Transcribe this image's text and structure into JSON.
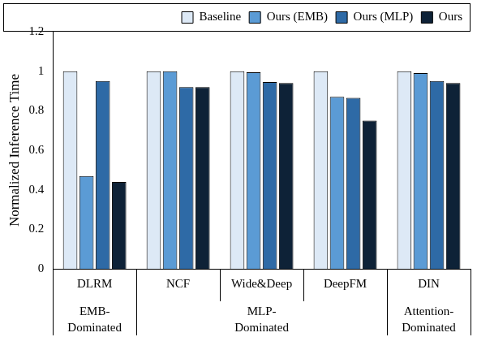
{
  "chart_data": {
    "type": "bar",
    "y_label": "Normalized Inference Time",
    "categories": [
      "DLRM",
      "NCF",
      "Wide&Deep",
      "DeepFM",
      "DIN"
    ],
    "category_groups": [
      {
        "label": [
          "EMB-",
          "Dominated"
        ],
        "categories": [
          "DLRM"
        ]
      },
      {
        "label": [
          "MLP-",
          "Dominated"
        ],
        "categories": [
          "NCF",
          "Wide&Deep",
          "DeepFM"
        ]
      },
      {
        "label": [
          "Attention-",
          "Dominated"
        ],
        "categories": [
          "DIN"
        ]
      }
    ],
    "series": [
      {
        "name": "Baseline",
        "color": "#dde9f6",
        "values": [
          1,
          1,
          1,
          1,
          1
        ]
      },
      {
        "name": "Ours (EMB)",
        "color": "#5b9bd5",
        "values": [
          0.47,
          1,
          0.995,
          0.87,
          0.99
        ]
      },
      {
        "name": "Ours (MLP)",
        "color": "#2e6aa6",
        "values": [
          0.95,
          0.92,
          0.945,
          0.865,
          0.95
        ]
      },
      {
        "name": "Ours",
        "color": "#0e2237",
        "values": [
          0.44,
          0.92,
          0.94,
          0.75,
          0.94
        ]
      }
    ],
    "ylim": [
      0,
      1.2
    ],
    "yticks": [
      0,
      0.2,
      0.4,
      0.6,
      0.8,
      1,
      1.2
    ],
    "grid": false,
    "legend": "top"
  }
}
